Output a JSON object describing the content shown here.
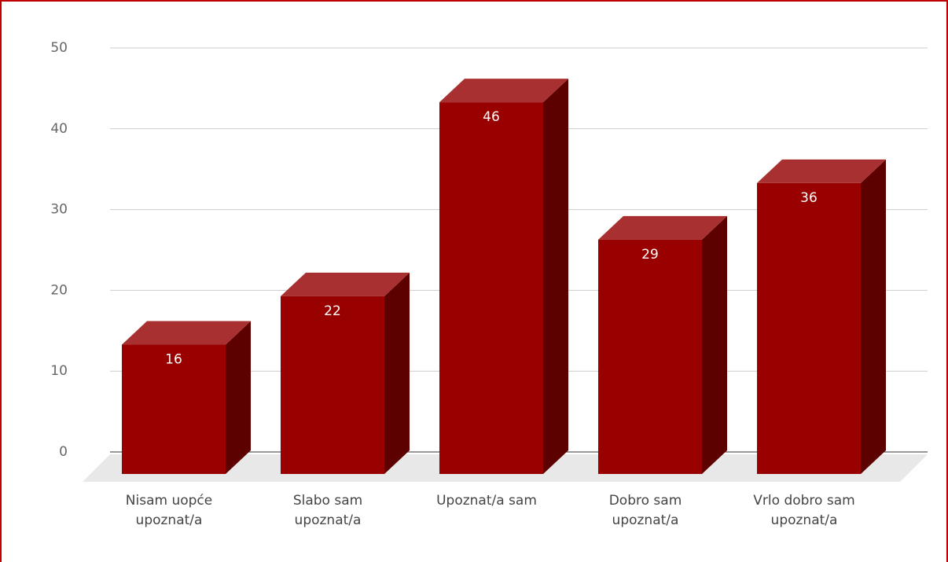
{
  "chart_data": {
    "type": "bar3d",
    "categories": [
      "Nisam uopće\nupoznat/a",
      "Slabo sam\nupoznat/a",
      "Upoznat/a sam",
      "Dobro sam\nupoznat/a",
      "Vrlo dobro sam\nupoznat/a"
    ],
    "values": [
      16,
      22,
      46,
      29,
      36
    ],
    "color": "#990000",
    "ylim": [
      0,
      50
    ],
    "yticks": [
      0,
      10,
      20,
      30,
      40,
      50
    ],
    "grid": true
  }
}
